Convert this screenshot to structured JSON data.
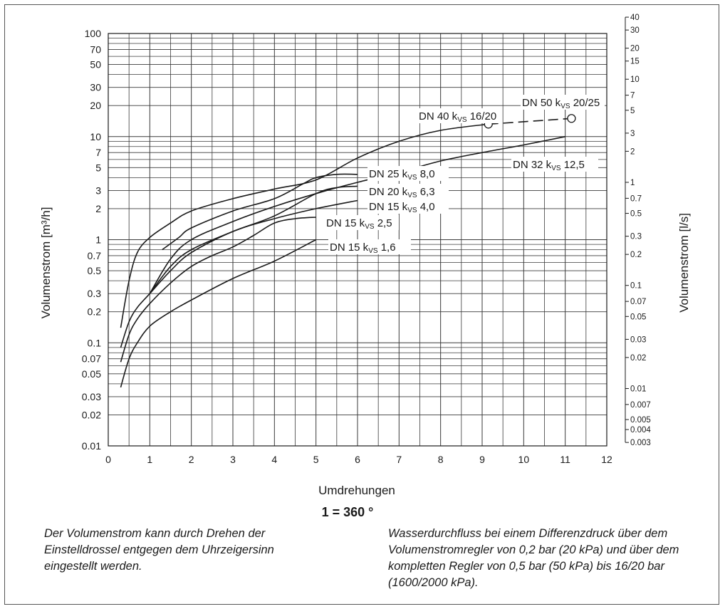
{
  "chart_data": {
    "type": "line",
    "xlabel": "Umdrehungen",
    "x_note": "1 = 360 °",
    "ylabel_left": "Volumenstrom [m³/h]",
    "ylabel_right": "Volumenstrom [l/s]",
    "xlim": [
      0,
      12
    ],
    "ylim": [
      0.01,
      100
    ],
    "y_scale": "log",
    "grid": true,
    "x_ticks": [
      "0",
      "1",
      "2",
      "3",
      "4",
      "5",
      "6",
      "7",
      "8",
      "9",
      "10",
      "11",
      "12"
    ],
    "y_ticks_left": [
      {
        "v": 100,
        "t": "100"
      },
      {
        "v": 70,
        "t": "70"
      },
      {
        "v": 50,
        "t": "50"
      },
      {
        "v": 30,
        "t": "30"
      },
      {
        "v": 20,
        "t": "20"
      },
      {
        "v": 10,
        "t": "10"
      },
      {
        "v": 7,
        "t": "7"
      },
      {
        "v": 5,
        "t": "5"
      },
      {
        "v": 3,
        "t": "3"
      },
      {
        "v": 2,
        "t": "2"
      },
      {
        "v": 1,
        "t": "1"
      },
      {
        "v": 0.7,
        "t": "0.7"
      },
      {
        "v": 0.5,
        "t": "0.5"
      },
      {
        "v": 0.3,
        "t": "0.3"
      },
      {
        "v": 0.2,
        "t": "0.2"
      },
      {
        "v": 0.1,
        "t": "0.1"
      },
      {
        "v": 0.07,
        "t": "0.07"
      },
      {
        "v": 0.05,
        "t": "0.05"
      },
      {
        "v": 0.03,
        "t": "0.03"
      },
      {
        "v": 0.02,
        "t": "0.02"
      },
      {
        "v": 0.01,
        "t": "0.01"
      }
    ],
    "y_ticks_right": [
      "40",
      "30",
      "20",
      "15",
      "10",
      "7",
      "5",
      "3",
      "2",
      "1",
      "0.7",
      "0.5",
      "0.3",
      "0.2",
      "0.1",
      "0.07",
      "0.05",
      "0.03",
      "0.02",
      "0.01",
      "0.007",
      "0.005",
      "0.004",
      "0.003"
    ],
    "series": [
      {
        "name": "DN 15 kVS 1,6",
        "x": [
          0.3,
          0.5,
          0.7,
          1,
          1.5,
          2,
          3,
          4,
          5
        ],
        "y": [
          0.037,
          0.07,
          0.1,
          0.145,
          0.2,
          0.26,
          0.42,
          0.62,
          1.0
        ]
      },
      {
        "name": "DN 15 kVS 2,5",
        "x": [
          0.3,
          0.5,
          0.7,
          1,
          1.5,
          2,
          2.5,
          3,
          3.5,
          4,
          4.5,
          5
        ],
        "y": [
          0.065,
          0.12,
          0.17,
          0.24,
          0.38,
          0.55,
          0.7,
          0.85,
          1.1,
          1.45,
          1.6,
          1.65
        ]
      },
      {
        "name": "DN 15 kVS 4,0",
        "x": [
          0.3,
          0.5,
          0.7,
          1,
          1.5,
          2,
          3,
          4,
          5,
          6
        ],
        "y": [
          0.09,
          0.16,
          0.22,
          0.3,
          0.5,
          0.75,
          1.2,
          1.6,
          2.0,
          2.4
        ]
      },
      {
        "name": "DN 20 kVS 6,3",
        "x": [
          1,
          1.5,
          2,
          3,
          4,
          5,
          5.5,
          6
        ],
        "y": [
          0.3,
          0.55,
          0.8,
          1.2,
          1.7,
          2.8,
          3.2,
          3.3
        ]
      },
      {
        "name": "DN 25 kVS 8,0",
        "x": [
          1.3,
          1.7,
          2,
          3,
          4,
          4.7,
          5,
          5.5,
          6
        ],
        "y": [
          0.8,
          1.05,
          1.3,
          1.9,
          2.5,
          3.5,
          4.0,
          4.3,
          4.3
        ]
      },
      {
        "name": "DN 32 kVS 12,5",
        "x": [
          1,
          1.5,
          2,
          3,
          4,
          5,
          6,
          7,
          8,
          9,
          10,
          11
        ],
        "y": [
          0.3,
          0.65,
          1.0,
          1.5,
          2.1,
          2.8,
          3.6,
          4.5,
          5.8,
          7.0,
          8.3,
          10.0
        ]
      },
      {
        "name": "DN 40 kVS 16/20",
        "x": [
          0.3,
          0.5,
          0.7,
          1,
          1.5,
          2,
          3,
          4,
          5,
          6,
          7,
          8,
          9.15
        ],
        "y": [
          0.14,
          0.4,
          0.75,
          1.05,
          1.45,
          1.9,
          2.5,
          3.1,
          3.8,
          6.2,
          9.0,
          11.5,
          13.2
        ]
      },
      {
        "name": "DN 50 kVS 20/25",
        "x": [
          9.15,
          11.15
        ],
        "y": [
          13.2,
          15.0
        ],
        "dashed": true
      }
    ],
    "labels": [
      {
        "prefix": "DN 50 k",
        "sub": "VS",
        "suffix": " 20/25"
      },
      {
        "prefix": "DN 40 k",
        "sub": "VS",
        "suffix": " 16/20"
      },
      {
        "prefix": "DN 32 k",
        "sub": "VS",
        "suffix": " 12,5"
      },
      {
        "prefix": "DN 25 k",
        "sub": "VS",
        "suffix": " 8,0"
      },
      {
        "prefix": "DN 20 k",
        "sub": "VS",
        "suffix": " 6,3"
      },
      {
        "prefix": "DN 15 k",
        "sub": "VS",
        "suffix": " 4,0"
      },
      {
        "prefix": "DN 15 k",
        "sub": "VS",
        "suffix": " 2,5"
      },
      {
        "prefix": "DN 15 k",
        "sub": "VS",
        "suffix": " 1,6"
      }
    ]
  },
  "captions": {
    "left": "Der Volumenstrom kann durch Drehen der Einstelldrossel entgegen dem Uhrzeigersinn eingestellt werden.",
    "right": "Wasserdurchfluss bei einem Differenzdruck über dem Volumenstromregler von 0,2 bar (20 kPa) und über dem kompletten Regler von 0,5 bar (50 kPa) bis 16/20 bar (1600/2000 kPa)."
  }
}
